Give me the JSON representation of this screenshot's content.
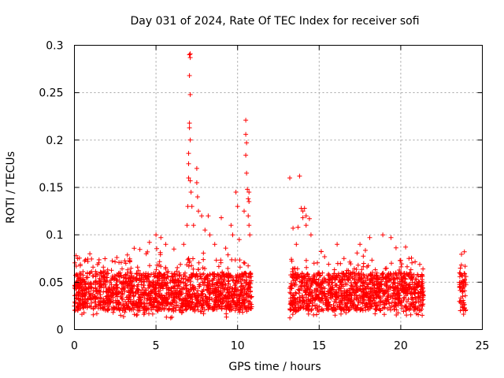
{
  "chart_data": {
    "type": "scatter",
    "title": "Day 031 of 2024, Rate Of TEC Index for receiver sofi",
    "xlabel": "GPS time / hours",
    "ylabel": "ROTI / TECUs",
    "xlim": [
      0,
      25
    ],
    "ylim": [
      0,
      0.3
    ],
    "x_ticks": [
      0,
      5,
      10,
      15,
      20,
      25
    ],
    "y_ticks": [
      0,
      0.05,
      0.1,
      0.15,
      0.2,
      0.25,
      0.3
    ],
    "x_tick_labels": [
      "0",
      "5",
      "10",
      "15",
      "20",
      "25"
    ],
    "y_tick_labels": [
      "0",
      "0.05",
      "0.1",
      "0.15",
      "0.2",
      "0.25",
      "0.3"
    ],
    "grid": true,
    "marker": "+",
    "color": "#ff0000",
    "coverage_intervals_hours": [
      [
        0,
        10.9
      ],
      [
        13.2,
        21.4
      ],
      [
        23.6,
        24.0
      ]
    ],
    "baseline_range": [
      0.02,
      0.06
    ],
    "notable_points": [
      {
        "x": 0.1,
        "y": 0.078
      },
      {
        "x": 0.2,
        "y": 0.075
      },
      {
        "x": 2.6,
        "y": 0.076
      },
      {
        "x": 4.4,
        "y": 0.08
      },
      {
        "x": 4.6,
        "y": 0.092
      },
      {
        "x": 5.0,
        "y": 0.1
      },
      {
        "x": 5.3,
        "y": 0.097
      },
      {
        "x": 5.6,
        "y": 0.09
      },
      {
        "x": 6.1,
        "y": 0.085
      },
      {
        "x": 6.7,
        "y": 0.09
      },
      {
        "x": 6.9,
        "y": 0.11
      },
      {
        "x": 6.95,
        "y": 0.13
      },
      {
        "x": 7.0,
        "y": 0.16
      },
      {
        "x": 7.0,
        "y": 0.175
      },
      {
        "x": 7.0,
        "y": 0.186
      },
      {
        "x": 7.05,
        "y": 0.29
      },
      {
        "x": 7.1,
        "y": 0.291
      },
      {
        "x": 7.1,
        "y": 0.287
      },
      {
        "x": 7.05,
        "y": 0.268
      },
      {
        "x": 7.1,
        "y": 0.248
      },
      {
        "x": 7.05,
        "y": 0.218
      },
      {
        "x": 7.05,
        "y": 0.213
      },
      {
        "x": 7.1,
        "y": 0.2
      },
      {
        "x": 7.1,
        "y": 0.157
      },
      {
        "x": 7.15,
        "y": 0.145
      },
      {
        "x": 7.2,
        "y": 0.13
      },
      {
        "x": 7.3,
        "y": 0.11
      },
      {
        "x": 7.5,
        "y": 0.17
      },
      {
        "x": 7.5,
        "y": 0.155
      },
      {
        "x": 7.55,
        "y": 0.14
      },
      {
        "x": 7.6,
        "y": 0.125
      },
      {
        "x": 7.8,
        "y": 0.12
      },
      {
        "x": 8.0,
        "y": 0.105
      },
      {
        "x": 8.2,
        "y": 0.12
      },
      {
        "x": 8.3,
        "y": 0.1
      },
      {
        "x": 8.6,
        "y": 0.09
      },
      {
        "x": 9.0,
        "y": 0.118
      },
      {
        "x": 9.6,
        "y": 0.11
      },
      {
        "x": 9.7,
        "y": 0.1
      },
      {
        "x": 9.9,
        "y": 0.145
      },
      {
        "x": 10.0,
        "y": 0.13
      },
      {
        "x": 10.1,
        "y": 0.095
      },
      {
        "x": 10.4,
        "y": 0.125
      },
      {
        "x": 10.5,
        "y": 0.221
      },
      {
        "x": 10.5,
        "y": 0.206
      },
      {
        "x": 10.55,
        "y": 0.197
      },
      {
        "x": 10.5,
        "y": 0.184
      },
      {
        "x": 10.55,
        "y": 0.165
      },
      {
        "x": 10.6,
        "y": 0.148
      },
      {
        "x": 10.65,
        "y": 0.138
      },
      {
        "x": 10.7,
        "y": 0.145
      },
      {
        "x": 10.7,
        "y": 0.135
      },
      {
        "x": 10.65,
        "y": 0.12
      },
      {
        "x": 10.7,
        "y": 0.11
      },
      {
        "x": 10.75,
        "y": 0.1
      },
      {
        "x": 13.2,
        "y": 0.16
      },
      {
        "x": 13.4,
        "y": 0.107
      },
      {
        "x": 13.6,
        "y": 0.09
      },
      {
        "x": 13.7,
        "y": 0.108
      },
      {
        "x": 13.8,
        "y": 0.162
      },
      {
        "x": 13.9,
        "y": 0.128
      },
      {
        "x": 14.0,
        "y": 0.125
      },
      {
        "x": 14.0,
        "y": 0.118
      },
      {
        "x": 14.1,
        "y": 0.128
      },
      {
        "x": 14.2,
        "y": 0.12
      },
      {
        "x": 14.2,
        "y": 0.11
      },
      {
        "x": 14.4,
        "y": 0.117
      },
      {
        "x": 14.5,
        "y": 0.1
      },
      {
        "x": 16.1,
        "y": 0.09
      },
      {
        "x": 17.5,
        "y": 0.09
      },
      {
        "x": 18.1,
        "y": 0.097
      },
      {
        "x": 18.9,
        "y": 0.1
      },
      {
        "x": 19.4,
        "y": 0.097
      },
      {
        "x": 20.3,
        "y": 0.087
      },
      {
        "x": 20.5,
        "y": 0.075
      },
      {
        "x": 23.9,
        "y": 0.082
      }
    ]
  }
}
